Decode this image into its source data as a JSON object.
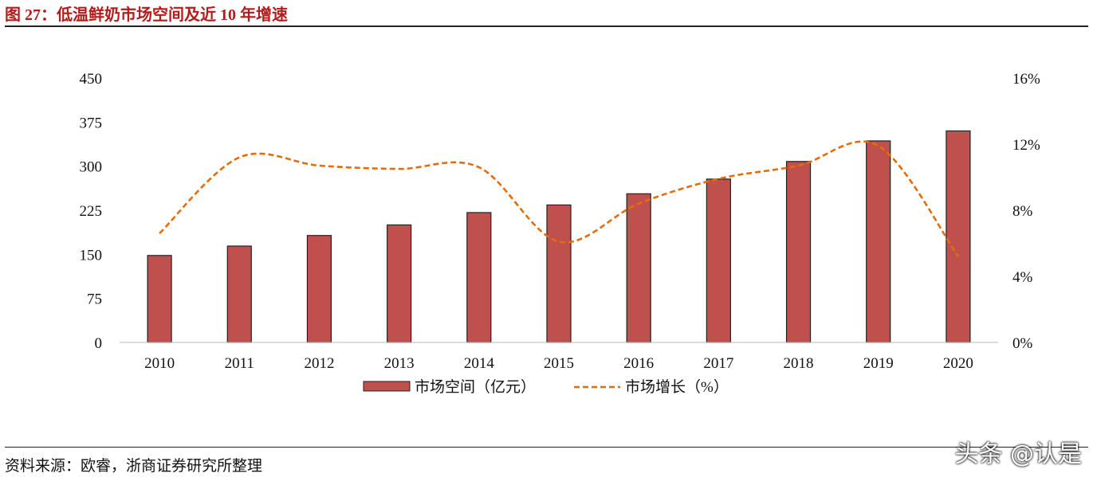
{
  "title": "图 27：低温鲜奶市场空间及近 10 年增速",
  "source": "资料来源：欧睿，浙商证券研究所整理",
  "watermark": "头条 @认是",
  "chart_data": {
    "type": "bar",
    "categories": [
      "2010",
      "2011",
      "2012",
      "2013",
      "2014",
      "2015",
      "2016",
      "2017",
      "2018",
      "2019",
      "2020"
    ],
    "series": [
      {
        "name": "市场空间（亿元）",
        "type": "bar",
        "axis": "left",
        "color": "#c0504d",
        "values": [
          148,
          164,
          182,
          200,
          221,
          234,
          253,
          278,
          308,
          343,
          360
        ]
      },
      {
        "name": "市场增长（%）",
        "type": "line",
        "style": "dashed",
        "smooth": true,
        "axis": "right",
        "color": "#e46c0a",
        "values": [
          6.6,
          11.2,
          10.7,
          10.5,
          10.6,
          6.1,
          8.4,
          9.9,
          10.7,
          11.9,
          5.2
        ]
      }
    ],
    "y_left": {
      "ylim": [
        0,
        450
      ],
      "ticks": [
        "0",
        "75",
        "150",
        "225",
        "300",
        "375",
        "450"
      ]
    },
    "y_right": {
      "ylim": [
        0,
        16
      ],
      "ticks": [
        "0%",
        "4%",
        "8%",
        "12%",
        "16%"
      ]
    },
    "grid": false,
    "legend": "bottom"
  }
}
